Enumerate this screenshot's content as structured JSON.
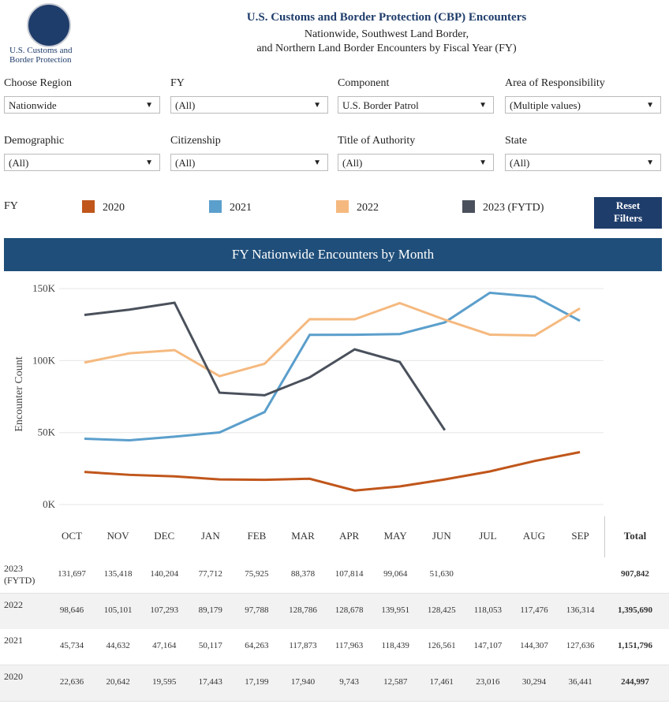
{
  "header": {
    "logo_text": [
      "U.S. Customs and",
      "Border Protection"
    ],
    "title": "U.S. Customs and Border Protection (CBP) Encounters",
    "subtitle": [
      "Nationwide, Southwest Land Border,",
      "and Northern Land Border Encounters by Fiscal Year (FY)"
    ]
  },
  "filters": [
    {
      "label": "Choose Region",
      "value": "Nationwide"
    },
    {
      "label": "FY",
      "value": "(All)"
    },
    {
      "label": "Component",
      "value": "U.S. Border Patrol"
    },
    {
      "label": "Area of Responsibility",
      "value": "(Multiple values)"
    },
    {
      "label": "Demographic",
      "value": "(All)"
    },
    {
      "label": "Citizenship",
      "value": "(All)"
    },
    {
      "label": "Title of Authority",
      "value": "(All)"
    },
    {
      "label": "State",
      "value": "(All)"
    }
  ],
  "legend_title": "FY",
  "reset_button": "Reset Filters",
  "chart_data": {
    "type": "line",
    "title": "FY Nationwide Encounters by Month",
    "y_label": "Encounter Count",
    "categories": [
      "OCT",
      "NOV",
      "DEC",
      "JAN",
      "FEB",
      "MAR",
      "APR",
      "MAY",
      "JUN",
      "JUL",
      "AUG",
      "SEP"
    ],
    "ylim": [
      0,
      155000
    ],
    "yticks": [
      {
        "value": 0,
        "label": "0K"
      },
      {
        "value": 50000,
        "label": "50K"
      },
      {
        "value": 100000,
        "label": "100K"
      },
      {
        "value": 150000,
        "label": "150K"
      }
    ],
    "grid": true,
    "series": [
      {
        "name": "2020",
        "color": "#c0561b",
        "values": [
          22636,
          20642,
          19595,
          17443,
          17199,
          17940,
          9743,
          12587,
          17461,
          23016,
          30294,
          36441
        ],
        "value_labels": [
          "22,636",
          "20,642",
          "19,595",
          "17,443",
          "17,199",
          "17,940",
          "9,743",
          "12,587",
          "17,461",
          "23,016",
          "30,294",
          "36,441"
        ]
      },
      {
        "name": "2021",
        "color": "#5b9fcc",
        "values": [
          45734,
          44632,
          47164,
          50117,
          64263,
          117873,
          117963,
          118439,
          126561,
          147107,
          144307,
          127636
        ],
        "value_labels": [
          "45,734",
          "44,632",
          "47,164",
          "50,117",
          "64,263",
          "117,873",
          "117,963",
          "118,439",
          "126,561",
          "147,107",
          "144,307",
          "127,636"
        ]
      },
      {
        "name": "2022",
        "color": "#f5b97f",
        "values": [
          98646,
          105101,
          107293,
          89179,
          97788,
          128786,
          128678,
          139951,
          128425,
          118053,
          117476,
          136314
        ],
        "value_labels": [
          "98,646",
          "105,101",
          "107,293",
          "89,179",
          "97,788",
          "128,786",
          "128,678",
          "139,951",
          "128,425",
          "118,053",
          "117,476",
          "136,314"
        ]
      },
      {
        "name": "2023 (FYTD)",
        "color": "#4a515c",
        "values": [
          131697,
          135418,
          140204,
          77712,
          75925,
          88378,
          107814,
          99064,
          51630,
          null,
          null,
          null
        ],
        "value_labels": [
          "131,697",
          "135,418",
          "140,204",
          "77,712",
          "75,925",
          "88,378",
          "107,814",
          "99,064",
          "51,630",
          null,
          null,
          null
        ]
      }
    ]
  },
  "table": {
    "total_header": "Total",
    "totals": [
      "907,842",
      "1,395,690",
      "1,151,796",
      "244,997"
    ]
  }
}
